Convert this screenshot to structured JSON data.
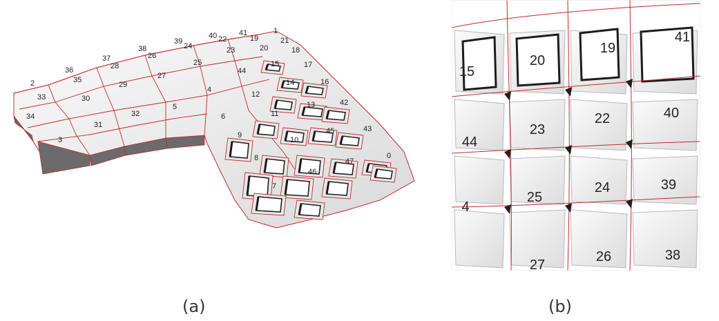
{
  "figure": {
    "panel_a": {
      "caption": "(a)",
      "tile_labels": [
        "0",
        "1",
        "2",
        "3",
        "4",
        "5",
        "6",
        "7",
        "8",
        "9",
        "10",
        "11",
        "12",
        "13",
        "14",
        "15",
        "16",
        "17",
        "18",
        "19",
        "20",
        "21",
        "22",
        "23",
        "24",
        "25",
        "26",
        "27",
        "28",
        "29",
        "30",
        "31",
        "32",
        "33",
        "34",
        "35",
        "36",
        "37",
        "38",
        "39",
        "40",
        "41",
        "42",
        "43",
        "44",
        "45",
        "46",
        "47"
      ]
    },
    "panel_b": {
      "caption": "(b)",
      "tile_labels": [
        "15",
        "20",
        "19",
        "41",
        "44",
        "23",
        "22",
        "40",
        "4",
        "25",
        "24",
        "39",
        "27",
        "26",
        "38"
      ]
    },
    "colors": {
      "edge_red": "#c0282b",
      "surface_light": "#f2f2f2",
      "surface_shadow": "#1a1a1a",
      "background": "#ffffff"
    }
  }
}
